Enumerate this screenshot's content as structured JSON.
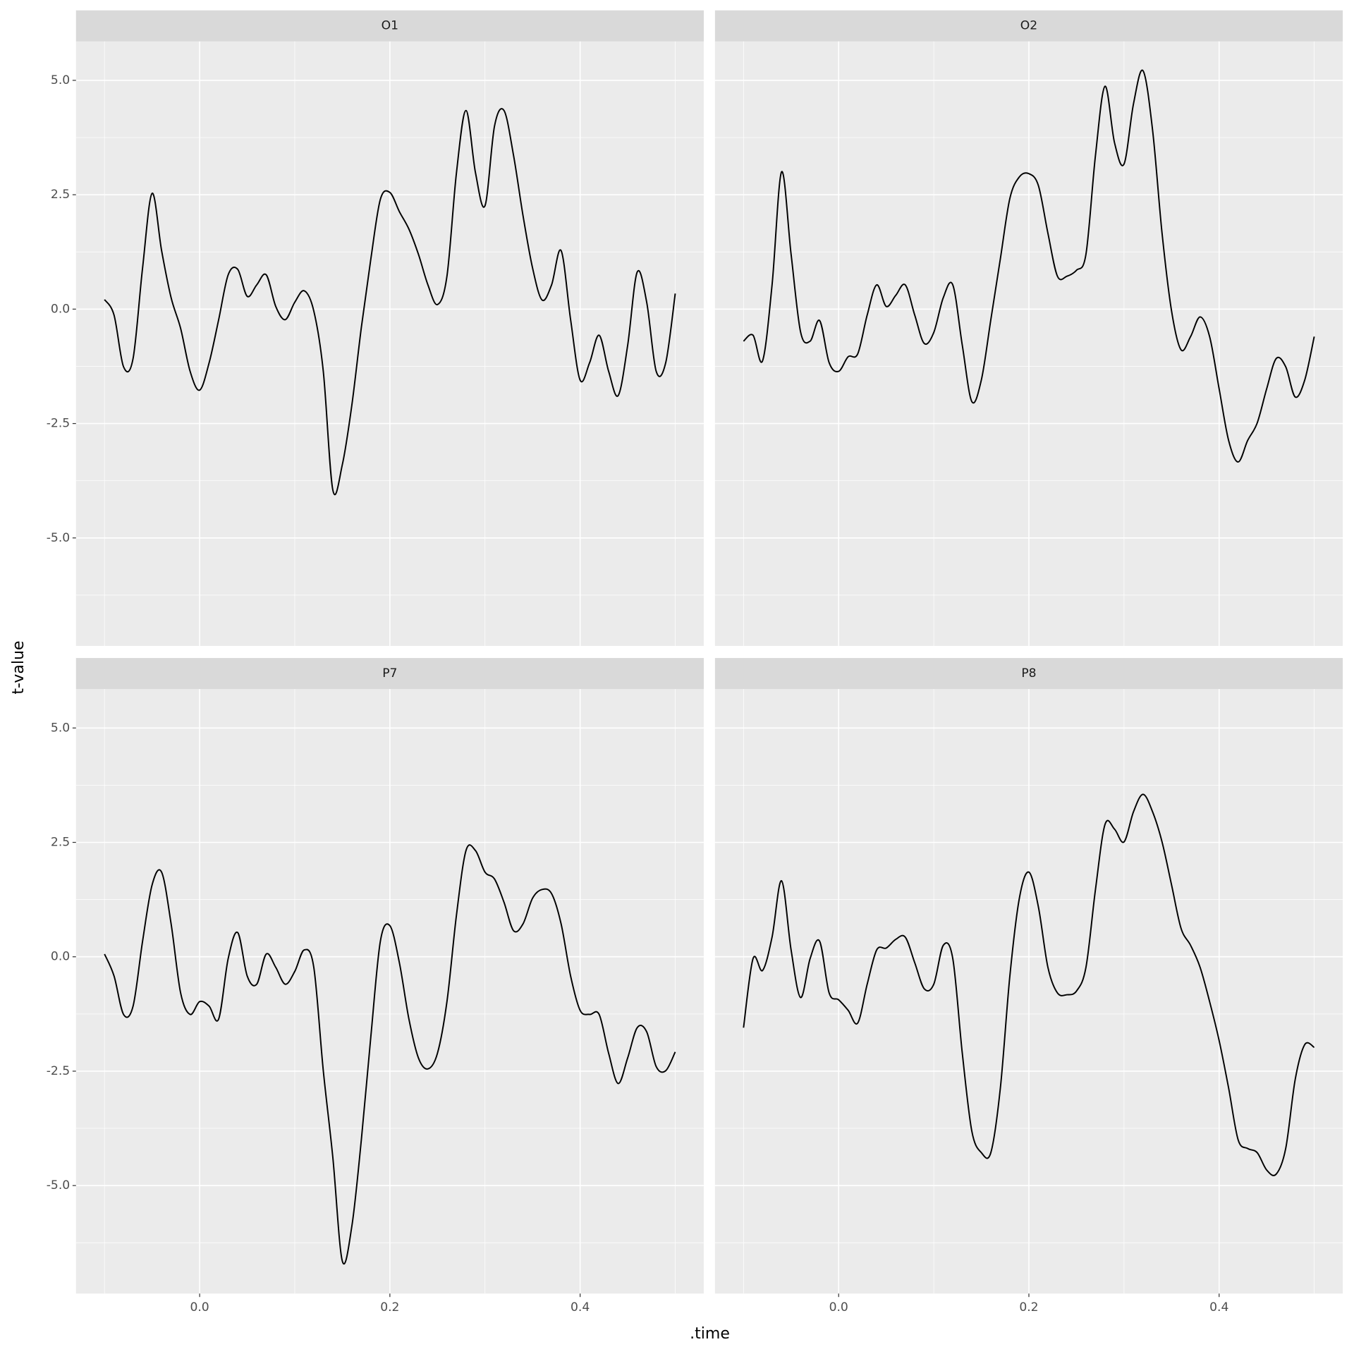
{
  "xlabel": ".time",
  "ylabel": "t-value",
  "xlim": [
    -0.13,
    0.53
  ],
  "xticks": [
    {
      "value": 0,
      "label": "0.0"
    },
    0.2,
    0.4
  ],
  "minor_xticks": [
    -0.1,
    0.1,
    0.3,
    0.5
  ],
  "ylim": [
    -7.36,
    5.85
  ],
  "yticks": [
    {
      "value": -5,
      "label": "-5.0"
    },
    -2.5,
    {
      "value": 0,
      "label": "0.0"
    },
    2.5,
    {
      "value": 5,
      "label": "5.0"
    }
  ],
  "minor_yticks": [
    -6.25,
    -3.75,
    -1.25,
    1.25,
    3.75
  ],
  "grid": true,
  "chart_data": [
    {
      "type": "line",
      "title": "O1",
      "color": "#000000",
      "x": [
        -0.1,
        -0.09,
        -0.08,
        -0.07,
        -0.06,
        -0.05,
        -0.04,
        -0.03,
        -0.02,
        -0.01,
        0,
        0.01,
        0.02,
        0.03,
        0.04,
        0.05,
        0.06,
        0.07,
        0.08,
        0.09,
        0.1,
        0.11,
        0.12,
        0.13,
        0.14,
        0.15,
        0.16,
        0.17,
        0.18,
        0.19,
        0.2,
        0.21,
        0.22,
        0.23,
        0.24,
        0.25,
        0.26,
        0.27,
        0.28,
        0.29,
        0.3,
        0.31,
        0.32,
        0.33,
        0.34,
        0.35,
        0.36,
        0.37,
        0.38,
        0.39,
        0.4,
        0.41,
        0.42,
        0.43,
        0.44,
        0.45,
        0.46,
        0.47,
        0.48,
        0.49,
        0.5
      ],
      "values": [
        0.21,
        -0.13,
        -1.26,
        -1.08,
        0.9,
        2.53,
        1.28,
        0.25,
        -0.42,
        -1.36,
        -1.77,
        -1.17,
        -0.23,
        0.75,
        0.87,
        0.28,
        0.53,
        0.75,
        0.06,
        -0.23,
        0.15,
        0.4,
        -0.04,
        -1.36,
        -3.95,
        -3.4,
        -2.1,
        -0.4,
        1.1,
        2.4,
        2.55,
        2.13,
        1.75,
        1.2,
        0.53,
        0.1,
        0.72,
        2.98,
        4.34,
        2.98,
        2.26,
        4.0,
        4.34,
        3.36,
        2.04,
        0.9,
        0.2,
        0.53,
        1.28,
        -0.23,
        -1.55,
        -1.17,
        -0.57,
        -1.36,
        -1.89,
        -0.79,
        0.81,
        0.15,
        -1.36,
        -1.17,
        0.34
      ]
    },
    {
      "type": "line",
      "title": "O2",
      "color": "#000000",
      "x": [
        -0.1,
        -0.09,
        -0.08,
        -0.07,
        -0.06,
        -0.05,
        -0.04,
        -0.03,
        -0.02,
        -0.01,
        0,
        0.01,
        0.02,
        0.03,
        0.04,
        0.05,
        0.06,
        0.07,
        0.08,
        0.09,
        0.1,
        0.11,
        0.12,
        0.13,
        0.14,
        0.15,
        0.16,
        0.17,
        0.18,
        0.19,
        0.2,
        0.21,
        0.22,
        0.23,
        0.24,
        0.25,
        0.26,
        0.27,
        0.28,
        0.29,
        0.3,
        0.31,
        0.32,
        0.33,
        0.34,
        0.35,
        0.36,
        0.37,
        0.38,
        0.39,
        0.4,
        0.41,
        0.42,
        0.43,
        0.44,
        0.45,
        0.46,
        0.47,
        0.48,
        0.49,
        0.5
      ],
      "values": [
        -0.7,
        -0.57,
        -1.13,
        0.53,
        3.0,
        1.2,
        -0.5,
        -0.7,
        -0.25,
        -1.17,
        -1.36,
        -1.04,
        -0.98,
        -0.13,
        0.53,
        0.06,
        0.3,
        0.53,
        -0.13,
        -0.75,
        -0.51,
        0.25,
        0.53,
        -0.79,
        -2.02,
        -1.55,
        -0.23,
        1.1,
        2.42,
        2.89,
        2.96,
        2.7,
        1.66,
        0.72,
        0.72,
        0.85,
        1.2,
        3.36,
        4.87,
        3.64,
        3.17,
        4.49,
        5.21,
        3.92,
        1.66,
        -0.04,
        -0.89,
        -0.6,
        -0.17,
        -0.6,
        -1.74,
        -2.87,
        -3.34,
        -2.87,
        -2.49,
        -1.74,
        -1.08,
        -1.26,
        -1.92,
        -1.55,
        -0.6
      ]
    },
    {
      "type": "line",
      "title": "P7",
      "color": "#000000",
      "x": [
        -0.1,
        -0.09,
        -0.08,
        -0.07,
        -0.06,
        -0.05,
        -0.04,
        -0.03,
        -0.02,
        -0.01,
        0,
        0.01,
        0.02,
        0.03,
        0.04,
        0.05,
        0.06,
        0.07,
        0.08,
        0.09,
        0.1,
        0.11,
        0.12,
        0.13,
        0.14,
        0.15,
        0.16,
        0.17,
        0.18,
        0.19,
        0.2,
        0.21,
        0.22,
        0.23,
        0.24,
        0.25,
        0.26,
        0.27,
        0.28,
        0.29,
        0.3,
        0.31,
        0.32,
        0.33,
        0.34,
        0.35,
        0.36,
        0.37,
        0.38,
        0.39,
        0.4,
        0.41,
        0.42,
        0.43,
        0.44,
        0.45,
        0.46,
        0.47,
        0.48,
        0.49,
        0.5
      ],
      "values": [
        0.06,
        -0.42,
        -1.26,
        -1.08,
        0.34,
        1.57,
        1.85,
        0.72,
        -0.79,
        -1.26,
        -0.98,
        -1.08,
        -1.36,
        -0.04,
        0.53,
        -0.42,
        -0.6,
        0.06,
        -0.23,
        -0.6,
        -0.32,
        0.15,
        -0.23,
        -2.49,
        -4.38,
        -6.65,
        -5.89,
        -4.0,
        -1.74,
        0.34,
        0.68,
        -0.13,
        -1.36,
        -2.21,
        -2.45,
        -2.11,
        -0.98,
        0.91,
        2.32,
        2.32,
        1.85,
        1.7,
        1.19,
        0.57,
        0.72,
        1.28,
        1.47,
        1.38,
        0.72,
        -0.42,
        -1.17,
        -1.26,
        -1.26,
        -2.11,
        -2.77,
        -2.21,
        -1.55,
        -1.64,
        -2.4,
        -2.49,
        -2.08
      ]
    },
    {
      "type": "line",
      "title": "P8",
      "color": "#000000",
      "x": [
        -0.1,
        -0.09,
        -0.08,
        -0.07,
        -0.06,
        -0.05,
        -0.04,
        -0.03,
        -0.02,
        -0.01,
        0,
        0.01,
        0.02,
        0.03,
        0.04,
        0.05,
        0.06,
        0.07,
        0.08,
        0.09,
        0.1,
        0.11,
        0.12,
        0.13,
        0.14,
        0.15,
        0.16,
        0.17,
        0.18,
        0.19,
        0.2,
        0.21,
        0.22,
        0.23,
        0.24,
        0.25,
        0.26,
        0.27,
        0.28,
        0.29,
        0.3,
        0.31,
        0.32,
        0.33,
        0.34,
        0.35,
        0.36,
        0.37,
        0.38,
        0.39,
        0.4,
        0.41,
        0.42,
        0.43,
        0.44,
        0.45,
        0.46,
        0.47,
        0.48,
        0.49,
        0.5
      ],
      "values": [
        -1.55,
        -0.04,
        -0.3,
        0.43,
        1.66,
        0.15,
        -0.89,
        -0.04,
        0.34,
        -0.79,
        -0.94,
        -1.17,
        -1.45,
        -0.6,
        0.15,
        0.19,
        0.38,
        0.43,
        -0.13,
        -0.7,
        -0.6,
        0.25,
        -0.04,
        -2.11,
        -3.81,
        -4.28,
        -4.28,
        -2.87,
        -0.42,
        1.28,
        1.85,
        1.09,
        -0.23,
        -0.79,
        -0.83,
        -0.75,
        -0.23,
        1.47,
        2.89,
        2.79,
        2.51,
        3.17,
        3.55,
        3.17,
        2.51,
        1.57,
        0.62,
        0.25,
        -0.23,
        -0.98,
        -1.83,
        -2.87,
        -4.0,
        -4.19,
        -4.28,
        -4.66,
        -4.75,
        -4.19,
        -2.68,
        -1.92,
        -1.98
      ]
    }
  ]
}
